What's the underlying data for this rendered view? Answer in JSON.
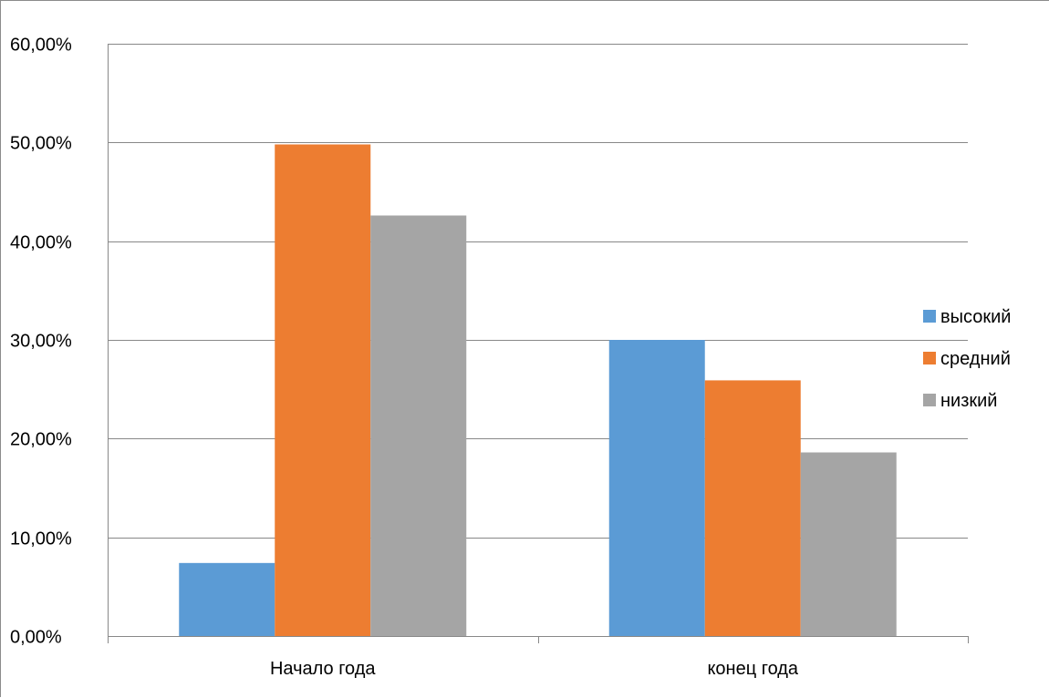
{
  "chart_data": {
    "type": "bar",
    "title": "",
    "xlabel": "",
    "ylabel": "",
    "categories": [
      "Начало года",
      "конец года"
    ],
    "series": [
      {
        "name": "высокий",
        "values": [
          7.4,
          30.0
        ],
        "color": "#5b9bd5"
      },
      {
        "name": "средний",
        "values": [
          49.8,
          25.9
        ],
        "color": "#ed7d31"
      },
      {
        "name": "низкий",
        "values": [
          42.6,
          18.6
        ],
        "color": "#a5a5a5"
      }
    ],
    "ylim": [
      0,
      60
    ],
    "yticks": [
      0,
      10,
      20,
      30,
      40,
      50,
      60
    ],
    "ytick_labels": [
      "0,00%",
      "10,00%",
      "20,00%",
      "30,00%",
      "40,00%",
      "50,00%",
      "60,00%"
    ],
    "grid": true,
    "legend_position": "right",
    "colors": {
      "gridline": "#888888",
      "axis": "#888888",
      "frame": "#8c8c8c"
    }
  }
}
